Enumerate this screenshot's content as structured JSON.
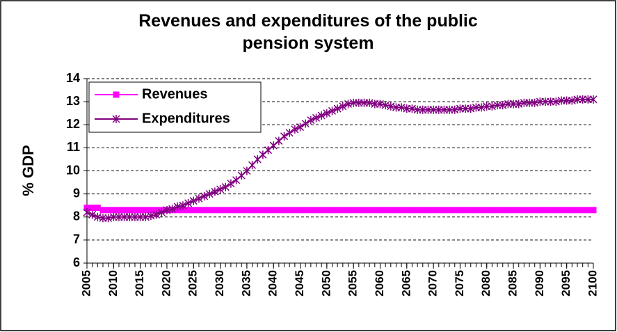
{
  "chart_data": {
    "type": "line",
    "title": "Revenues and expenditures of the public pension system",
    "y_label": "% GDP",
    "x": [
      2005,
      2006,
      2007,
      2008,
      2009,
      2010,
      2011,
      2012,
      2013,
      2014,
      2015,
      2016,
      2017,
      2018,
      2019,
      2020,
      2021,
      2022,
      2023,
      2024,
      2025,
      2026,
      2027,
      2028,
      2029,
      2030,
      2031,
      2032,
      2033,
      2034,
      2035,
      2036,
      2037,
      2038,
      2039,
      2040,
      2041,
      2042,
      2043,
      2044,
      2045,
      2046,
      2047,
      2048,
      2049,
      2050,
      2051,
      2052,
      2053,
      2054,
      2055,
      2056,
      2057,
      2058,
      2059,
      2060,
      2061,
      2062,
      2063,
      2064,
      2065,
      2066,
      2067,
      2068,
      2069,
      2070,
      2071,
      2072,
      2073,
      2074,
      2075,
      2076,
      2077,
      2078,
      2079,
      2080,
      2081,
      2082,
      2083,
      2084,
      2085,
      2086,
      2087,
      2088,
      2089,
      2090,
      2091,
      2092,
      2093,
      2094,
      2095,
      2096,
      2097,
      2098,
      2099,
      2100
    ],
    "series": [
      {
        "name": "Revenues",
        "color": "#ff00ff",
        "marker": "square",
        "values": [
          8.4,
          8.4,
          8.4,
          8.3,
          8.3,
          8.3,
          8.3,
          8.3,
          8.3,
          8.3,
          8.3,
          8.3,
          8.3,
          8.3,
          8.3,
          8.3,
          8.3,
          8.3,
          8.3,
          8.3,
          8.3,
          8.3,
          8.3,
          8.3,
          8.3,
          8.3,
          8.3,
          8.3,
          8.3,
          8.3,
          8.3,
          8.3,
          8.3,
          8.3,
          8.3,
          8.3,
          8.3,
          8.3,
          8.3,
          8.3,
          8.3,
          8.3,
          8.3,
          8.3,
          8.3,
          8.3,
          8.3,
          8.3,
          8.3,
          8.3,
          8.3,
          8.3,
          8.3,
          8.3,
          8.3,
          8.3,
          8.3,
          8.3,
          8.3,
          8.3,
          8.3,
          8.3,
          8.3,
          8.3,
          8.3,
          8.3,
          8.3,
          8.3,
          8.3,
          8.3,
          8.3,
          8.3,
          8.3,
          8.3,
          8.3,
          8.3,
          8.3,
          8.3,
          8.3,
          8.3,
          8.3,
          8.3,
          8.3,
          8.3,
          8.3,
          8.3,
          8.3,
          8.3,
          8.3,
          8.3,
          8.3,
          8.3,
          8.3,
          8.3,
          8.3,
          8.3
        ]
      },
      {
        "name": "Expenditures",
        "color": "#800080",
        "marker": "asterisk",
        "values": [
          8.2,
          8.1,
          8.0,
          7.95,
          7.95,
          8.0,
          8.0,
          8.0,
          8.0,
          8.0,
          8.0,
          8.0,
          8.05,
          8.1,
          8.2,
          8.3,
          8.35,
          8.45,
          8.5,
          8.6,
          8.7,
          8.8,
          8.9,
          9.0,
          9.1,
          9.2,
          9.3,
          9.45,
          9.6,
          9.8,
          10.0,
          10.25,
          10.5,
          10.7,
          10.9,
          11.1,
          11.3,
          11.5,
          11.65,
          11.8,
          11.9,
          12.05,
          12.2,
          12.3,
          12.4,
          12.5,
          12.6,
          12.7,
          12.8,
          12.9,
          12.95,
          12.95,
          12.95,
          12.95,
          12.9,
          12.9,
          12.85,
          12.8,
          12.75,
          12.75,
          12.7,
          12.7,
          12.65,
          12.65,
          12.65,
          12.65,
          12.65,
          12.65,
          12.65,
          12.65,
          12.7,
          12.7,
          12.7,
          12.75,
          12.75,
          12.8,
          12.8,
          12.85,
          12.85,
          12.9,
          12.9,
          12.9,
          12.95,
          12.95,
          12.95,
          13.0,
          13.0,
          13.0,
          13.0,
          13.05,
          13.05,
          13.05,
          13.1,
          13.1,
          13.1,
          13.1
        ]
      }
    ],
    "xlim": [
      2005,
      2100
    ],
    "xticks": [
      2005,
      2010,
      2015,
      2020,
      2025,
      2030,
      2035,
      2040,
      2045,
      2050,
      2055,
      2060,
      2065,
      2070,
      2075,
      2080,
      2085,
      2090,
      2095,
      2100
    ],
    "ylim": [
      6,
      14
    ],
    "yticks": [
      6,
      7,
      8,
      9,
      10,
      11,
      12,
      13,
      14
    ],
    "grid": true,
    "legend": "upper left"
  }
}
